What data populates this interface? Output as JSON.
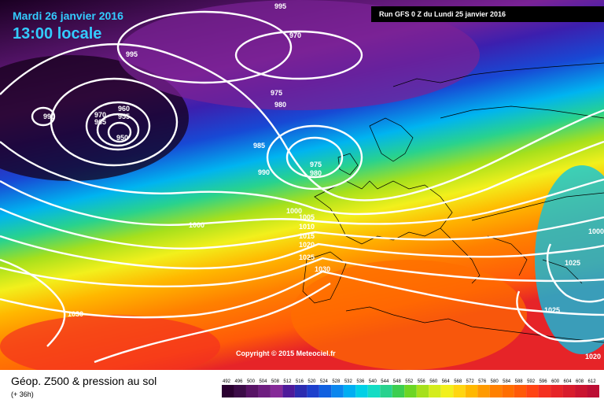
{
  "header": {
    "date": "Mardi 26 janvier 2016",
    "time": "13:00 locale",
    "run": "Run GFS 0 Z du Lundi 25 janvier 2016"
  },
  "copyright": "Copyright © 2015 Meteociel.fr",
  "legend": {
    "title": "Géop. Z500 & pression au sol",
    "subtitle": "(+ 36h)",
    "ticks": [
      "492",
      "496",
      "500",
      "504",
      "508",
      "512",
      "516",
      "520",
      "524",
      "528",
      "532",
      "536",
      "540",
      "544",
      "548",
      "552",
      "556",
      "560",
      "564",
      "568",
      "572",
      "576",
      "580",
      "584",
      "588",
      "592",
      "596",
      "600",
      "604",
      "608",
      "612"
    ],
    "colors": [
      "#2a0030",
      "#3c0c48",
      "#581466",
      "#6e1e80",
      "#852a98",
      "#4e1a9a",
      "#2c2cb0",
      "#1e40cc",
      "#1060e0",
      "#0a86ee",
      "#00aef2",
      "#00d0e6",
      "#14dcc4",
      "#28d28e",
      "#3cce50",
      "#6cd624",
      "#a6e01c",
      "#d4ec1c",
      "#f2f01c",
      "#ffd610",
      "#ffb800",
      "#ff9a00",
      "#ff8000",
      "#ff6e00",
      "#ff5a08",
      "#ff4414",
      "#f43020",
      "#e62428",
      "#d81c2c",
      "#ca1430",
      "#bc0e34"
    ]
  },
  "pressure_labels": [
    "995",
    "970",
    "995",
    "975",
    "980",
    "990",
    "960",
    "955",
    "970",
    "965",
    "950",
    "985",
    "975",
    "980",
    "990",
    "1000",
    "1005",
    "1010",
    "1015",
    "1020",
    "1025",
    "1030",
    "1000",
    "1025",
    "1030",
    "1025",
    "1020",
    "1000"
  ]
}
